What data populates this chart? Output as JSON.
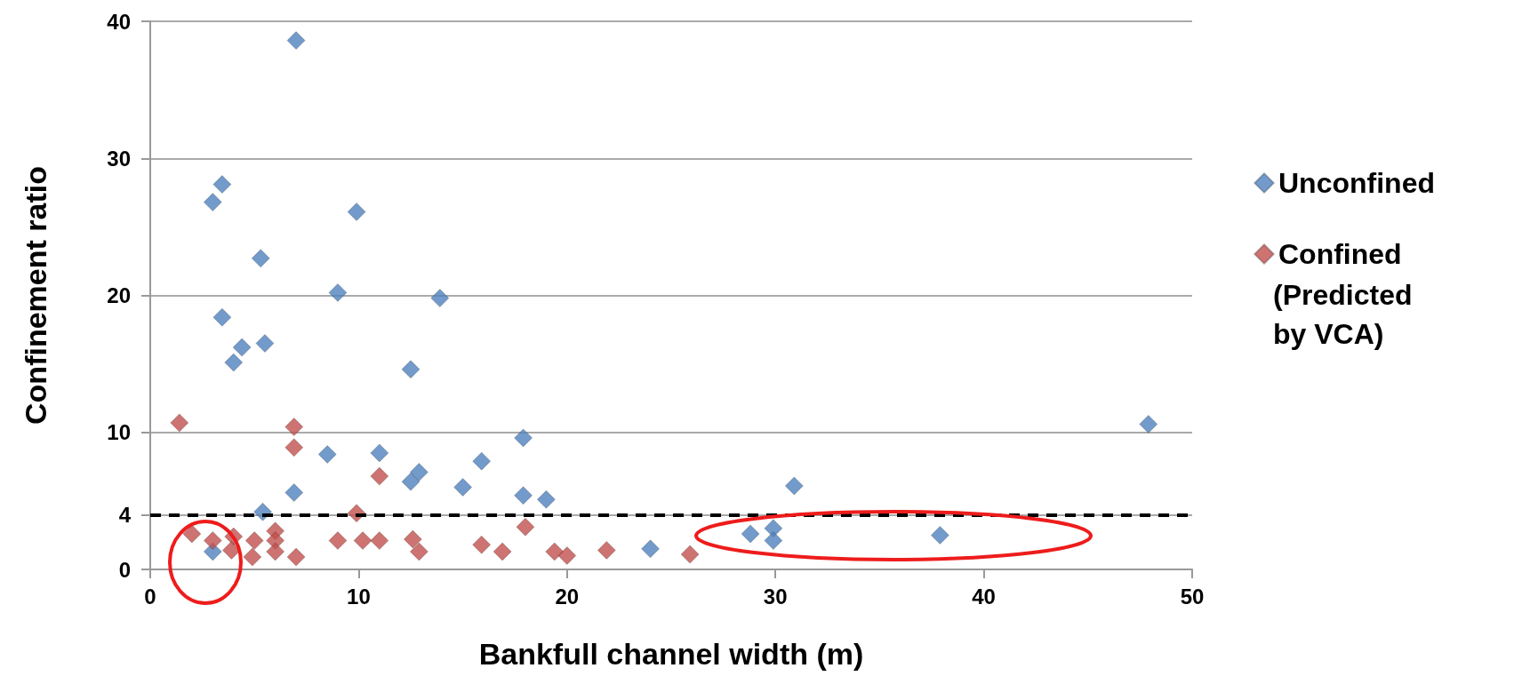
{
  "chart_data": {
    "type": "scatter",
    "xlabel": "Bankfull channel width (m)",
    "ylabel": "Confinement ratio",
    "xlim": [
      0,
      50
    ],
    "xticks": [
      0,
      10,
      20,
      30,
      40,
      50
    ],
    "ylim": [
      0,
      40
    ],
    "yticks": [
      0,
      4,
      10,
      20,
      30,
      40
    ],
    "grid": "y",
    "legend": "right",
    "marker": "diamond",
    "annotations": [
      "(Predicted by VCA)"
    ],
    "ref_lines": [
      {
        "axis": "y",
        "value": 4,
        "label": null,
        "color": "#000000",
        "line_style": "dashed"
      }
    ],
    "series": [
      {
        "name": "Unconfined",
        "color": "#4f81bd",
        "x": [
          7.0,
          3.45,
          3.0,
          9.9,
          5.3,
          9.0,
          13.9,
          3.45,
          4.4,
          5.5,
          4.0,
          12.5,
          47.9,
          17.9,
          8.5,
          11.0,
          15.9,
          12.9,
          12.5,
          15.0,
          6.9,
          17.9,
          19.0,
          30.9,
          5.4,
          3.0,
          24.0,
          28.8,
          29.9,
          29.9,
          37.9
        ],
        "values": [
          38.6,
          28.1,
          26.8,
          26.1,
          22.7,
          20.2,
          19.8,
          18.4,
          16.2,
          16.5,
          15.1,
          14.6,
          10.6,
          9.6,
          8.4,
          8.5,
          7.9,
          7.1,
          6.4,
          6.0,
          5.6,
          5.4,
          5.1,
          6.1,
          4.2,
          1.3,
          1.5,
          2.6,
          3.0,
          2.1,
          2.5
        ]
      },
      {
        "name": "Confined",
        "color": "#c0504d",
        "x": [
          1.4,
          6.9,
          6.9,
          11.0,
          9.9,
          18.0,
          2.0,
          3.0,
          4.0,
          3.9,
          5.0,
          4.9,
          6.0,
          6.0,
          6.0,
          7.0,
          9.0,
          10.2,
          11.0,
          12.6,
          12.9,
          15.9,
          16.9,
          19.4,
          20.0,
          21.9,
          25.9
        ],
        "values": [
          10.7,
          10.4,
          8.9,
          6.8,
          4.1,
          3.1,
          2.6,
          2.1,
          2.4,
          1.4,
          2.1,
          0.9,
          2.8,
          2.1,
          1.3,
          0.9,
          2.1,
          2.1,
          2.1,
          2.2,
          1.3,
          1.8,
          1.3,
          1.3,
          1.0,
          1.4,
          1.1
        ]
      }
    ]
  }
}
